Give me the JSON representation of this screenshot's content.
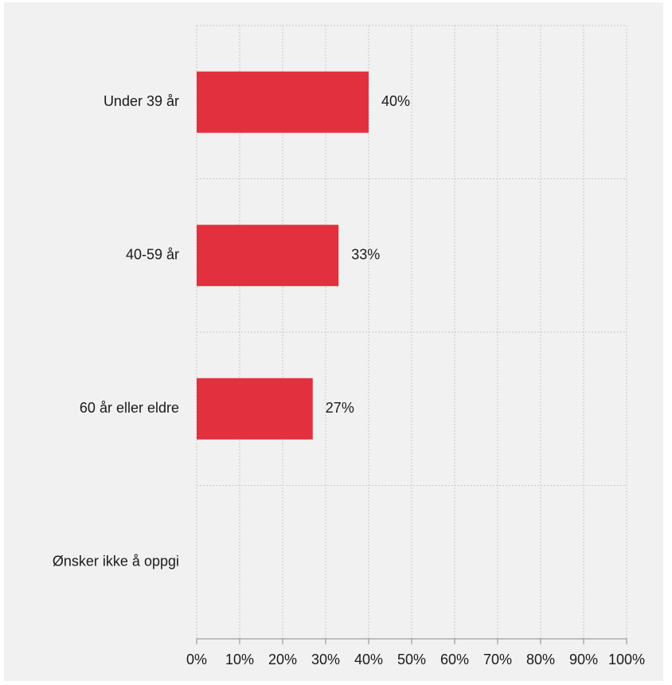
{
  "chart_data": {
    "type": "bar",
    "orientation": "horizontal",
    "categories": [
      "Under 39 år",
      "40-59 år",
      "60 år eller eldre",
      "Ønsker ikke å oppgi"
    ],
    "values": [
      40,
      33,
      27,
      0
    ],
    "data_labels": [
      "40%",
      "33%",
      "27%",
      ""
    ],
    "title": "",
    "xlabel": "",
    "ylabel": "",
    "xlim": [
      0,
      100
    ],
    "x_ticks": [
      "0%",
      "10%",
      "20%",
      "30%",
      "40%",
      "50%",
      "60%",
      "70%",
      "80%",
      "90%",
      "100%"
    ],
    "grid": true,
    "legend": "none",
    "colors": {
      "bar": "#e3303e",
      "background": "#f1f1f1",
      "grid": "#c8c8c8",
      "axis": "#8a8a8a"
    }
  }
}
